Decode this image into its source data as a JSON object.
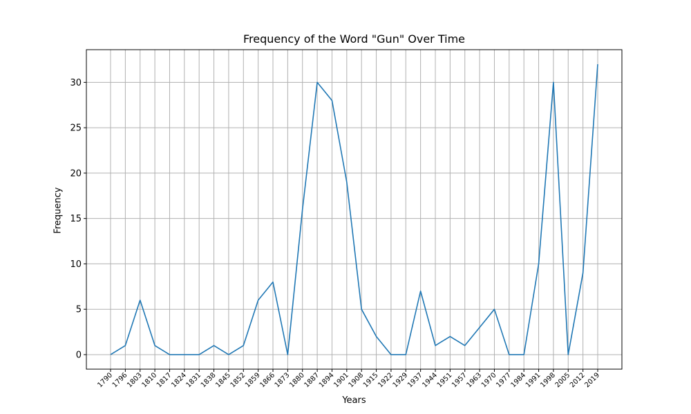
{
  "chart_data": {
    "type": "line",
    "title": "Frequency of the Word \"Gun\" Over Time",
    "xlabel": "Years",
    "ylabel": "Frequency",
    "categories": [
      "1790",
      "1796",
      "1803",
      "1810",
      "1817",
      "1824",
      "1831",
      "1838",
      "1845",
      "1852",
      "1859",
      "1866",
      "1873",
      "1880",
      "1887",
      "1894",
      "1901",
      "1908",
      "1915",
      "1922",
      "1929",
      "1937",
      "1944",
      "1951",
      "1957",
      "1963",
      "1970",
      "1977",
      "1984",
      "1991",
      "1998",
      "2005",
      "2012",
      "2019"
    ],
    "series": [
      {
        "values": [
          0,
          1,
          6,
          1,
          0,
          0,
          0,
          1,
          0,
          1,
          6,
          8,
          0,
          16,
          30,
          28,
          19,
          5,
          2,
          0,
          0,
          7,
          1,
          2,
          1,
          3,
          5,
          0,
          0,
          10,
          30,
          0,
          9,
          32
        ]
      }
    ],
    "ylim": [
      -1.6,
      33.6
    ],
    "yticks": [
      0,
      5,
      10,
      15,
      20,
      25,
      30
    ],
    "grid": true,
    "line_color": "#1f77b4"
  }
}
